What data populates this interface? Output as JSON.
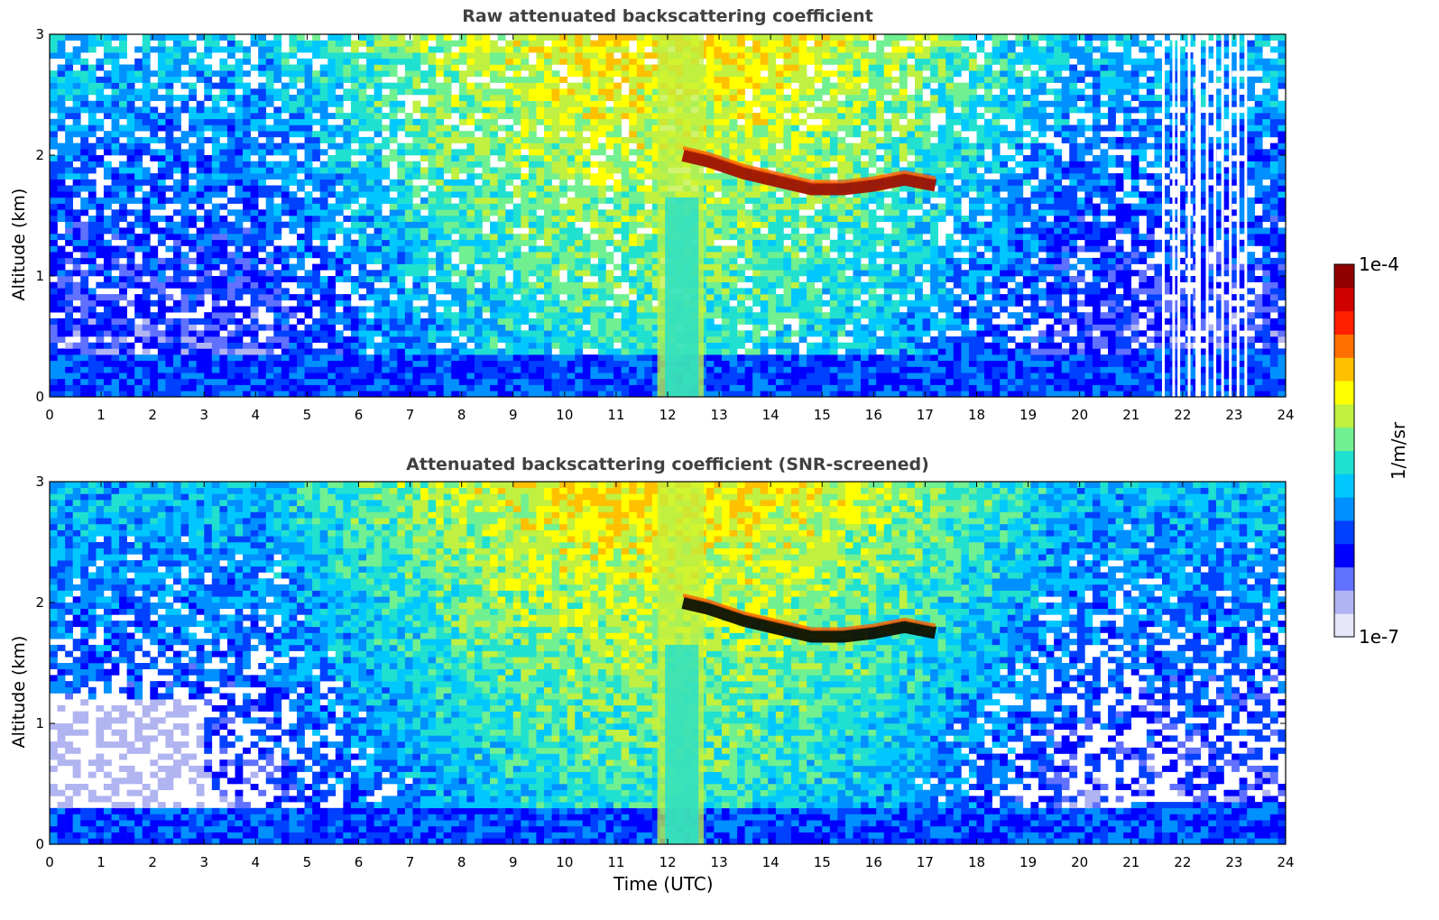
{
  "chart_data": [
    {
      "type": "heatmap",
      "title": "Raw attenuated backscattering coefficient",
      "xlabel": "",
      "ylabel": "Altitude (km)",
      "xlim": [
        0,
        24
      ],
      "ylim": [
        0,
        3
      ],
      "xticks": [
        "0",
        "1",
        "2",
        "3",
        "4",
        "5",
        "6",
        "7",
        "8",
        "9",
        "10",
        "11",
        "12",
        "13",
        "14",
        "15",
        "16",
        "17",
        "18",
        "19",
        "20",
        "21",
        "22",
        "23",
        "24"
      ],
      "yticks": [
        "0",
        "1",
        "2",
        "3"
      ],
      "features": {
        "boundary_layer_top_km": 0.35,
        "cloud_layer": {
          "start_utc": 12.3,
          "end_utc": 17.2,
          "altitude_km": [
            2.0,
            1.95,
            1.85,
            1.78,
            1.72,
            1.72,
            1.75,
            1.8,
            1.75
          ],
          "times_utc": [
            12.3,
            12.8,
            13.5,
            14.2,
            14.8,
            15.4,
            16.0,
            16.6,
            17.2
          ]
        },
        "precipitation_utc": [
          11.8,
          12.7
        ],
        "missing_profiles_utc": [
          21.6,
          21.8,
          21.9,
          22.1,
          22.25,
          22.3,
          22.45,
          22.6,
          22.75,
          22.9,
          23.05,
          23.2
        ]
      }
    },
    {
      "type": "heatmap",
      "title": "Attenuated backscattering coefficient (SNR-screened)",
      "xlabel": "Time (UTC)",
      "ylabel": "Altitude (km)",
      "xlim": [
        0,
        24
      ],
      "ylim": [
        0,
        3
      ],
      "xticks": [
        "0",
        "1",
        "2",
        "3",
        "4",
        "5",
        "6",
        "7",
        "8",
        "9",
        "10",
        "11",
        "12",
        "13",
        "14",
        "15",
        "16",
        "17",
        "18",
        "19",
        "20",
        "21",
        "22",
        "23",
        "24"
      ],
      "yticks": [
        "0",
        "1",
        "2",
        "3"
      ],
      "features": {
        "boundary_layer_top_km": 0.3,
        "cloud_layer": {
          "start_utc": 12.3,
          "end_utc": 17.2,
          "altitude_km": [
            2.0,
            1.95,
            1.85,
            1.78,
            1.72,
            1.72,
            1.75,
            1.8,
            1.75
          ],
          "times_utc": [
            12.3,
            12.8,
            13.5,
            14.2,
            14.8,
            15.4,
            16.0,
            16.6,
            17.2
          ]
        },
        "precipitation_utc": [
          11.8,
          12.7
        ]
      }
    }
  ],
  "colorbar": {
    "max_label": "1e-4",
    "min_label": "1e-7",
    "unit": "1/m/sr",
    "colors": [
      "#e6e6fa",
      "#b0b4f0",
      "#6070ff",
      "#0000ff",
      "#0040ff",
      "#0090ff",
      "#00c8ff",
      "#20e0d0",
      "#70f090",
      "#c0f040",
      "#ffff00",
      "#ffc000",
      "#ff7000",
      "#ff2000",
      "#d00000",
      "#900000"
    ]
  }
}
